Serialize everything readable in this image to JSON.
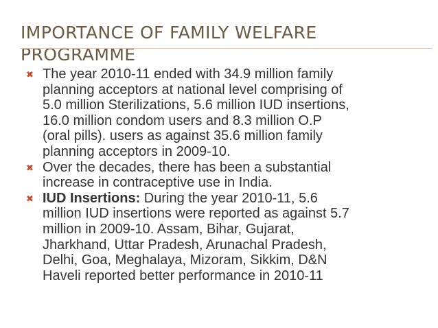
{
  "slide": {
    "title_line1": "IMPORTANCE OF FAMILY WELFARE",
    "title_line2": "PROGRAMME",
    "bullet_icon": "✖",
    "bullets": [
      {
        "lines": [
          "The year 2010-11 ended with 34.9 million family",
          "planning acceptors at national level comprising of",
          "5.0 million Sterilizations, 5.6 million IUD insertions,",
          "16.0 million condom users and 8.3 million O.P",
          "(oral pills). users as against 35.6 million family",
          "planning acceptors in 2009-10."
        ]
      },
      {
        "lines": [
          "Over the decades, there has been a substantial",
          "increase in contraceptive use in India."
        ]
      },
      {
        "bold": "IUD Insertions:",
        "lines": [
          " During the year 2010-11, 5.6",
          "million IUD insertions were reported as against 5.7",
          "million in 2009-10. Assam, Bihar, Gujarat,",
          "Jharkhand, Uttar Pradesh, Arunachal Pradesh,",
          "Delhi, Goa, Meghalaya, Mizoram, Sikkim, D&N",
          "Haveli reported better performance in 2010-11"
        ]
      }
    ]
  }
}
